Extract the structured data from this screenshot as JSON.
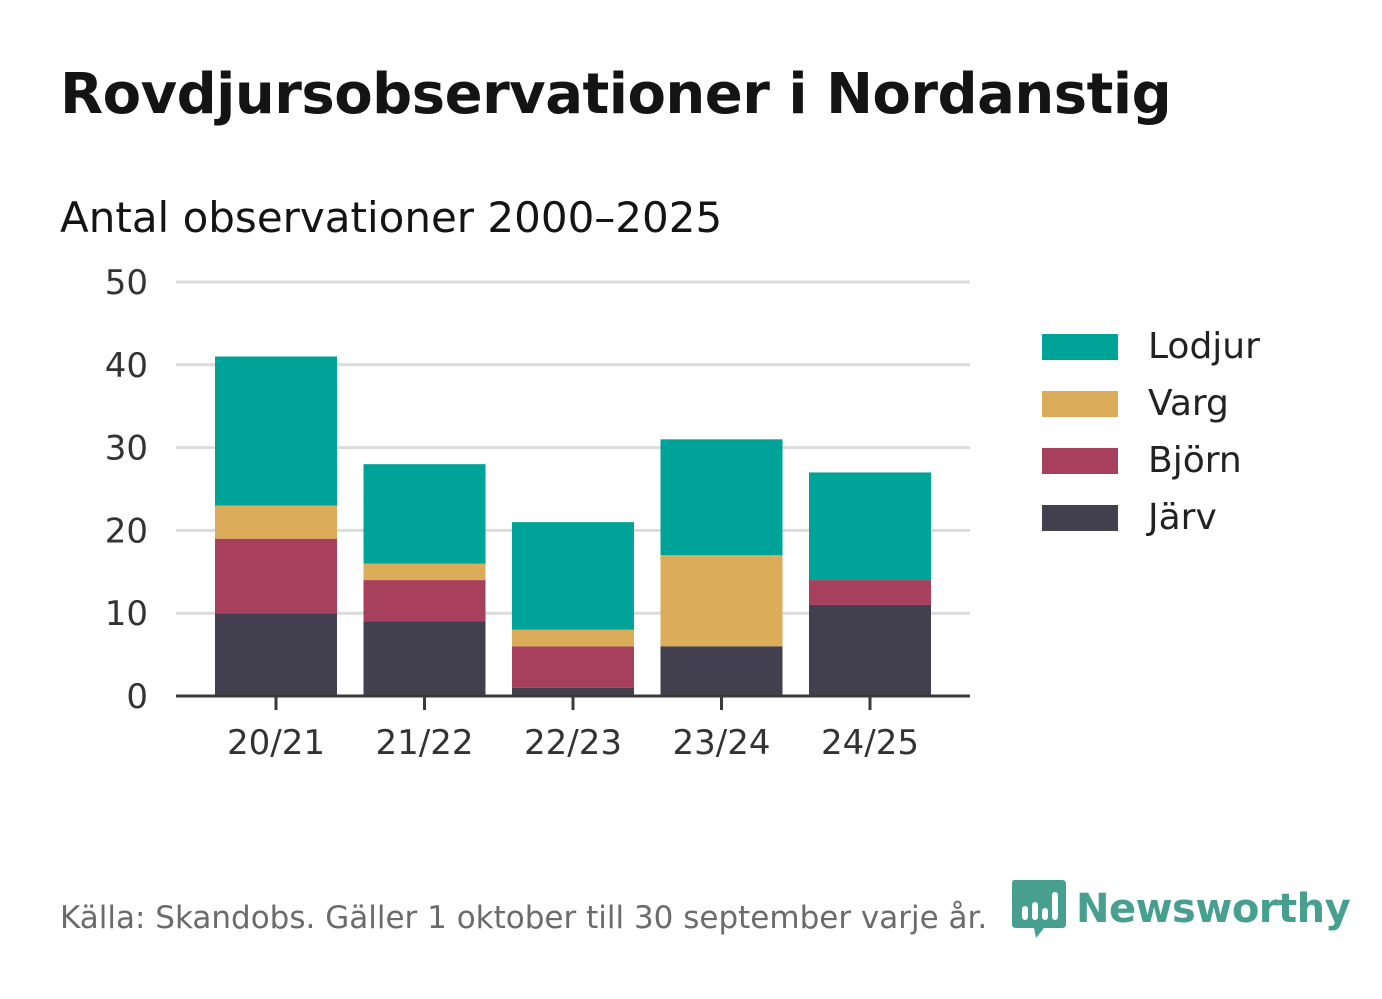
{
  "title": "Rovdjursobservationer i Nordanstig",
  "subtitle": "Antal observationer 2000–2025",
  "source": "Källa: Skandobs. Gäller 1 oktober till 30 september varje år.",
  "brand": {
    "name": "Newsworthy",
    "color": "#47a08f"
  },
  "chart_data": {
    "type": "bar",
    "stacked": true,
    "title": "Antal observationer 2000–2025",
    "xlabel": "",
    "ylabel": "",
    "categories": [
      "20/21",
      "21/22",
      "22/23",
      "23/24",
      "24/25"
    ],
    "ylim": [
      0,
      50
    ],
    "yticks": [
      0,
      10,
      20,
      30,
      40,
      50
    ],
    "grid": true,
    "legend_position": "right",
    "series": [
      {
        "name": "Järv",
        "color": "#42404f",
        "values": [
          10,
          9,
          1,
          6,
          11
        ]
      },
      {
        "name": "Björn",
        "color": "#a6405c",
        "values": [
          9,
          5,
          5,
          0,
          3
        ]
      },
      {
        "name": "Varg",
        "color": "#dbac5a",
        "values": [
          4,
          2,
          2,
          11,
          0
        ]
      },
      {
        "name": "Lodjur",
        "color": "#00a398",
        "values": [
          18,
          12,
          13,
          14,
          13
        ]
      }
    ]
  }
}
